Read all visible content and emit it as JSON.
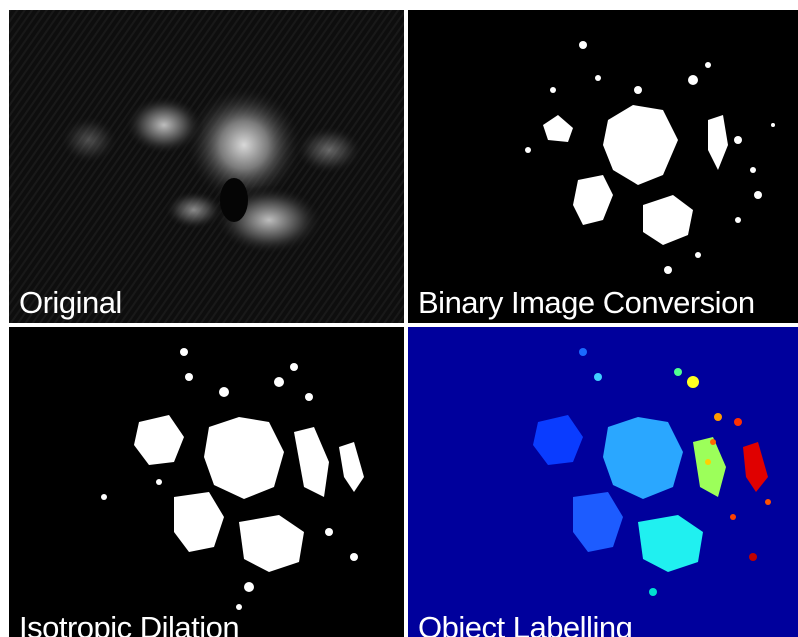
{
  "panels": [
    {
      "id": "original",
      "caption": "Original"
    },
    {
      "id": "binary",
      "caption": "Binary Image Conversion"
    },
    {
      "id": "dilation",
      "caption": "Isotropic Dilation"
    },
    {
      "id": "labelling",
      "caption": "Object Labelling"
    }
  ],
  "colors": {
    "divider": "#ffffff",
    "labelling_background": "#00009c",
    "caption_text": "#ffffff"
  }
}
